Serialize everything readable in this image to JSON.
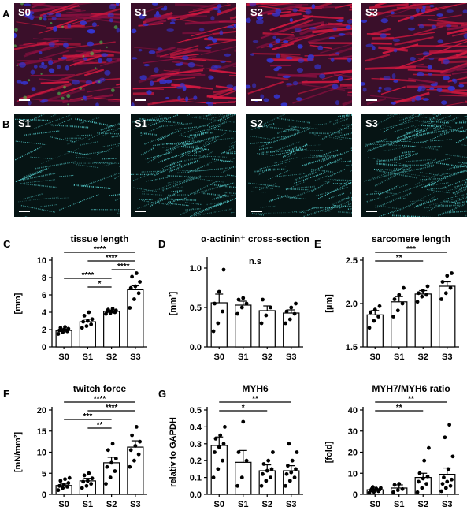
{
  "panels": {
    "A": {
      "letter": "A",
      "tiles": [
        "S0",
        "S1",
        "S2",
        "S3"
      ],
      "colors": {
        "red": "#c8143c",
        "blue": "#3030c8",
        "green": "#40c040"
      }
    },
    "B": {
      "letter": "B",
      "tiles": [
        "S1",
        "S1",
        "S2",
        "S3"
      ],
      "colors": {
        "cyan": "#4fd0d0"
      }
    }
  },
  "chart_data": [
    {
      "letter": "C",
      "type": "bar",
      "title": "tissue length",
      "xlabel": "",
      "ylabel": "[mm]",
      "categories": [
        "S0",
        "S1",
        "S2",
        "S3"
      ],
      "values": [
        1.9,
        2.9,
        4.1,
        6.6
      ],
      "errors": [
        0.15,
        0.3,
        0.15,
        0.45
      ],
      "ylim": [
        0,
        10
      ],
      "yticks": [
        0,
        2,
        4,
        6,
        8,
        10
      ],
      "points": [
        [
          1.5,
          1.7,
          1.8,
          1.9,
          2.0,
          2.1,
          2.2,
          2.3
        ],
        [
          2.2,
          2.4,
          2.6,
          2.9,
          3.0,
          3.2,
          3.6,
          4.0
        ],
        [
          3.8,
          3.9,
          4.0,
          4.1,
          4.1,
          4.2,
          4.3,
          4.4
        ],
        [
          4.5,
          5.5,
          6.2,
          6.8,
          7.0,
          7.5,
          8.1,
          8.5
        ]
      ],
      "sig": [
        {
          "from": 0,
          "to": 3,
          "label": "****"
        },
        {
          "from": 1,
          "to": 3,
          "label": "****"
        },
        {
          "from": 2,
          "to": 3,
          "label": "****"
        },
        {
          "from": 0,
          "to": 2,
          "label": "****"
        },
        {
          "from": 1,
          "to": 2,
          "label": "*"
        }
      ],
      "annotation": ""
    },
    {
      "letter": "D",
      "type": "bar",
      "title": "α-actinin⁺ cross-section",
      "xlabel": "",
      "ylabel": "[mm²]",
      "categories": [
        "S0",
        "S1",
        "S2",
        "S3"
      ],
      "values": [
        0.56,
        0.53,
        0.46,
        0.43
      ],
      "errors": [
        0.11,
        0.05,
        0.06,
        0.04
      ],
      "ylim": [
        0,
        1.1
      ],
      "yticks": [
        0.0,
        0.5,
        1.0
      ],
      "points": [
        [
          0.2,
          0.3,
          0.45,
          0.55,
          0.7,
          0.98
        ],
        [
          0.42,
          0.5,
          0.55,
          0.6,
          0.62
        ],
        [
          0.3,
          0.4,
          0.5,
          0.6
        ],
        [
          0.3,
          0.35,
          0.42,
          0.45,
          0.5,
          0.55
        ]
      ],
      "sig": [],
      "annotation": "n.s"
    },
    {
      "letter": "E",
      "type": "bar",
      "title": "sarcomere length",
      "xlabel": "",
      "ylabel": "[µm]",
      "categories": [
        "S0",
        "S1",
        "S2",
        "S3"
      ],
      "values": [
        1.87,
        2.02,
        2.11,
        2.2
      ],
      "errors": [
        0.05,
        0.06,
        0.04,
        0.05
      ],
      "ylim": [
        1.5,
        2.5
      ],
      "yticks": [
        1.5,
        2.0,
        2.5
      ],
      "points": [
        [
          1.72,
          1.8,
          1.85,
          1.9,
          1.93,
          1.97
        ],
        [
          1.85,
          1.92,
          2.0,
          2.05,
          2.1,
          2.18
        ],
        [
          2.02,
          2.08,
          2.1,
          2.12,
          2.15,
          2.2
        ],
        [
          2.05,
          2.12,
          2.18,
          2.25,
          2.32,
          2.35
        ]
      ],
      "sig": [
        {
          "from": 0,
          "to": 3,
          "label": "***"
        },
        {
          "from": 0,
          "to": 2,
          "label": "**"
        }
      ],
      "annotation": ""
    },
    {
      "letter": "F",
      "type": "bar",
      "title": "twitch force",
      "xlabel": "",
      "ylabel": "[mN/mm²]",
      "categories": [
        "S0",
        "S1",
        "S2",
        "S3"
      ],
      "values": [
        2.1,
        3.2,
        7.5,
        11.2
      ],
      "errors": [
        0.35,
        0.6,
        1.3,
        1.5
      ],
      "ylim": [
        0,
        20
      ],
      "yticks": [
        0,
        5,
        10,
        15,
        20
      ],
      "points": [
        [
          1.0,
          1.5,
          1.8,
          2.0,
          2.3,
          2.7,
          3.2,
          3.6,
          3.9
        ],
        [
          1.5,
          2.0,
          2.5,
          3.0,
          3.2,
          3.8,
          4.5,
          5.0
        ],
        [
          2.5,
          4.0,
          5.5,
          6.5,
          7.5,
          8.5,
          10.5,
          12.0
        ],
        [
          6.5,
          8.0,
          9.5,
          10.5,
          11.5,
          12.5,
          14.0,
          16.0
        ]
      ],
      "sig": [
        {
          "from": 0,
          "to": 3,
          "label": "****"
        },
        {
          "from": 1,
          "to": 3,
          "label": "****"
        },
        {
          "from": 0,
          "to": 2,
          "label": "***"
        },
        {
          "from": 1,
          "to": 2,
          "label": "**"
        }
      ],
      "annotation": ""
    },
    {
      "letter": "G",
      "type": "bar",
      "title": "MYH6",
      "xlabel": "",
      "ylabel": "relativ to GAPDH",
      "categories": [
        "S0",
        "S1",
        "S2",
        "S3"
      ],
      "values": [
        0.29,
        0.19,
        0.14,
        0.14
      ],
      "errors": [
        0.05,
        0.07,
        0.035,
        0.03
      ],
      "ylim": [
        0,
        0.5
      ],
      "yticks": [
        0.0,
        0.1,
        0.2,
        0.3,
        0.4,
        0.5
      ],
      "points": [
        [
          0.1,
          0.15,
          0.2,
          0.25,
          0.28,
          0.3,
          0.33,
          0.35,
          0.4
        ],
        [
          0.05,
          0.1,
          0.2,
          0.25,
          0.43
        ],
        [
          0.05,
          0.08,
          0.1,
          0.12,
          0.14,
          0.15,
          0.18,
          0.2,
          0.25
        ],
        [
          0.05,
          0.08,
          0.1,
          0.12,
          0.13,
          0.15,
          0.17,
          0.2,
          0.25,
          0.3
        ]
      ],
      "sig": [
        {
          "from": 0,
          "to": 3,
          "label": "**"
        },
        {
          "from": 0,
          "to": 2,
          "label": "*"
        }
      ],
      "annotation": ""
    },
    {
      "letter": "",
      "type": "bar",
      "title": "MYH7/MYH6 ratio",
      "xlabel": "",
      "ylabel": "[fold]",
      "categories": [
        "S0",
        "S1",
        "S2",
        "S3"
      ],
      "values": [
        2.2,
        3.0,
        8.0,
        9.5
      ],
      "errors": [
        0.4,
        1.5,
        2.0,
        3.0
      ],
      "ylim": [
        0,
        40
      ],
      "yticks": [
        0,
        10,
        20,
        30,
        40
      ],
      "points": [
        [
          0.8,
          1.2,
          1.5,
          1.8,
          2.0,
          2.2,
          2.5,
          2.8,
          3.0,
          3.5
        ],
        [
          1.0,
          2.0,
          2.5,
          4.5,
          5.0
        ],
        [
          1.0,
          3.0,
          5.0,
          6.0,
          7.5,
          8.5,
          10.0,
          16.0,
          22.0
        ],
        [
          1.5,
          3.0,
          4.0,
          5.0,
          6.0,
          7.0,
          8.0,
          12.0,
          18.0,
          27.0,
          33.0
        ]
      ],
      "sig": [
        {
          "from": 0,
          "to": 3,
          "label": "**"
        },
        {
          "from": 0,
          "to": 2,
          "label": "**"
        }
      ],
      "annotation": ""
    }
  ]
}
